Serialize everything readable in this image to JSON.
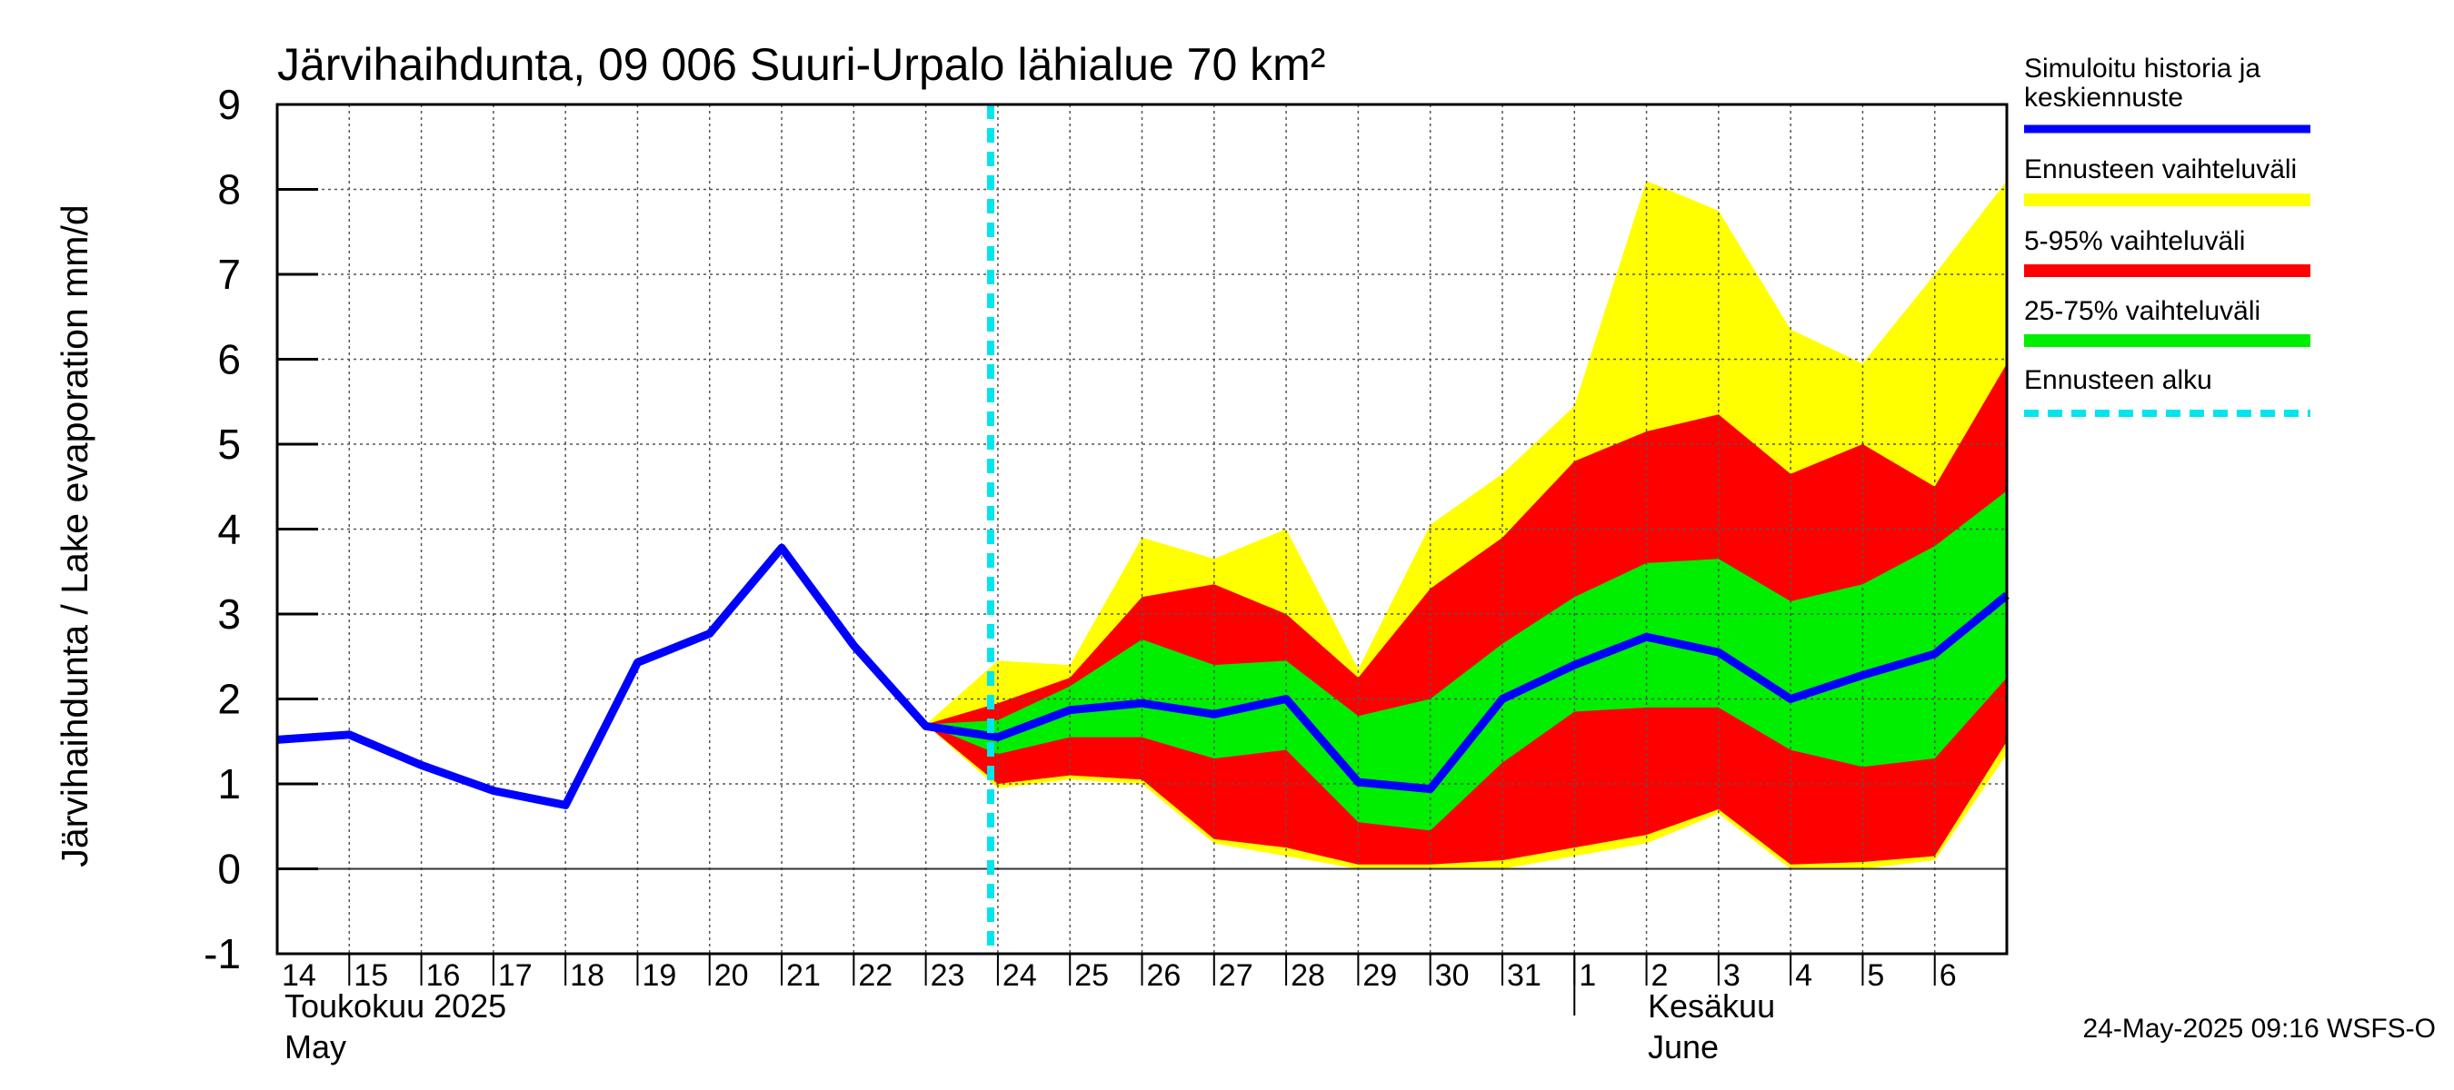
{
  "chart_data": {
    "type": "area",
    "title": "Järvihaihdunta, 09 006 Suuri-Urpalo lähialue 70 km²",
    "ylabel": "Järvihaihdunta / Lake evaporation   mm/d",
    "ylim": [
      -1,
      9
    ],
    "yticks": [
      "-1",
      "0",
      "1",
      "2",
      "3",
      "4",
      "5",
      "6",
      "7",
      "8",
      "9"
    ],
    "categories": [
      "14",
      "15",
      "16",
      "17",
      "18",
      "19",
      "20",
      "21",
      "22",
      "23",
      "24",
      "25",
      "26",
      "27",
      "28",
      "29",
      "30",
      "31",
      "1",
      "2",
      "3",
      "4",
      "5",
      "6"
    ],
    "month_labels": [
      {
        "line1": "Toukokuu  2025",
        "line2": "May"
      },
      {
        "line1": "Kesäkuu",
        "line2": "June"
      }
    ],
    "forecast_start_day": 23.9,
    "series": [
      {
        "name": "Ennusteen vaihteluväli",
        "color": "#ffff00",
        "x": [
          23,
          24,
          25,
          26,
          27,
          28,
          29,
          30,
          31,
          32,
          33,
          34,
          35,
          36,
          37,
          38
        ],
        "upper": [
          1.7,
          2.45,
          2.4,
          3.9,
          3.65,
          4.0,
          2.35,
          4.05,
          4.65,
          5.45,
          8.1,
          7.75,
          6.35,
          5.95,
          7.0,
          8.1
        ],
        "lower": [
          1.7,
          0.95,
          1.05,
          1.0,
          0.3,
          0.15,
          0.0,
          0.0,
          0.0,
          0.15,
          0.3,
          0.65,
          0.0,
          0.0,
          0.1,
          1.35
        ]
      },
      {
        "name": "5-95% vaihteluväli",
        "color": "#ff0000",
        "x": [
          23,
          24,
          25,
          26,
          27,
          28,
          29,
          30,
          31,
          32,
          33,
          34,
          35,
          36,
          37,
          38
        ],
        "upper": [
          1.7,
          1.95,
          2.25,
          3.2,
          3.35,
          3.0,
          2.25,
          3.3,
          3.9,
          4.8,
          5.15,
          5.35,
          4.65,
          5.0,
          4.5,
          5.95
        ],
        "lower": [
          1.7,
          1.0,
          1.1,
          1.05,
          0.35,
          0.25,
          0.05,
          0.05,
          0.1,
          0.25,
          0.4,
          0.7,
          0.05,
          0.08,
          0.15,
          1.5
        ]
      },
      {
        "name": "25-75% vaihteluväli",
        "color": "#00ee00",
        "x": [
          23,
          24,
          25,
          26,
          27,
          28,
          29,
          30,
          31,
          32,
          33,
          34,
          35,
          36,
          37,
          38
        ],
        "upper": [
          1.7,
          1.75,
          2.15,
          2.7,
          2.4,
          2.45,
          1.8,
          2.0,
          2.65,
          3.2,
          3.6,
          3.65,
          3.15,
          3.35,
          3.8,
          4.45
        ],
        "lower": [
          1.7,
          1.35,
          1.55,
          1.55,
          1.3,
          1.4,
          0.55,
          0.45,
          1.25,
          1.85,
          1.9,
          1.9,
          1.4,
          1.2,
          1.3,
          2.25
        ]
      },
      {
        "name": "Simuloitu historia ja keskiennuste",
        "color": "#0000ff",
        "x": [
          14,
          15,
          16,
          17,
          18,
          19,
          20,
          21,
          22,
          23,
          24,
          25,
          26,
          27,
          28,
          29,
          30,
          31,
          32,
          33,
          34,
          35,
          36,
          37,
          38
        ],
        "values": [
          1.52,
          1.58,
          1.22,
          0.92,
          0.75,
          2.43,
          2.77,
          3.78,
          2.63,
          1.68,
          1.55,
          1.87,
          1.95,
          1.82,
          2.0,
          1.02,
          0.94,
          2.0,
          2.4,
          2.73,
          2.55,
          2.0,
          2.28,
          2.53,
          3.22
        ]
      }
    ],
    "legend_placement": "right",
    "grid": true
  },
  "legend": [
    {
      "label": "Simuloitu historia ja keskiennuste",
      "color": "#0000ff",
      "style": "solid"
    },
    {
      "label": "Ennusteen vaihteluväli",
      "color": "#ffff00",
      "style": "solid"
    },
    {
      "label": "5-95% vaihteluväli",
      "color": "#ff0000",
      "style": "solid"
    },
    {
      "label": "25-75% vaihteluväli",
      "color": "#00ee00",
      "style": "solid"
    },
    {
      "label": "Ennusteen alku",
      "color": "#00e5ee",
      "style": "dashed"
    }
  ],
  "timestamp": "24-May-2025 09:16 WSFS-O"
}
